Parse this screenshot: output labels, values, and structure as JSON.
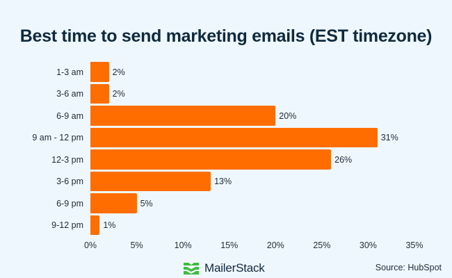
{
  "header": {
    "title": "Best time to send marketing emails (EST timezone)"
  },
  "chart_data": {
    "type": "bar",
    "orientation": "horizontal",
    "title": "Best time to send marketing emails (EST timezone)",
    "xlabel": "",
    "ylabel": "",
    "categories": [
      "1-3 am",
      "3-6 am",
      "6-9 am",
      "9 am - 12 pm",
      "12-3 pm",
      "3-6 pm",
      "6-9 pm",
      "9-12 pm"
    ],
    "values": [
      2,
      2,
      20,
      31,
      26,
      13,
      5,
      1
    ],
    "value_labels": [
      "2%",
      "2%",
      "20%",
      "31%",
      "26%",
      "13%",
      "5%",
      "1%"
    ],
    "xlim": [
      0,
      35
    ],
    "x_ticks": [
      "0%",
      "5%",
      "10%",
      "15%",
      "20%",
      "25%",
      "30%",
      "35%"
    ],
    "x_tick_values": [
      0,
      5,
      10,
      15,
      20,
      25,
      30,
      35
    ],
    "grid": false,
    "legend": null,
    "bar_color": "#ff6d00"
  },
  "footer": {
    "brand": "MailerStack",
    "brand_icon": "stacked-chevrons-logo-icon",
    "brand_color": "#3dbd3d",
    "source": "Source: HubSpot"
  },
  "colors": {
    "background": "#eff7fe",
    "bar": "#ff6d00",
    "text": "#1d2b3a",
    "title": "#0f2a3d"
  }
}
